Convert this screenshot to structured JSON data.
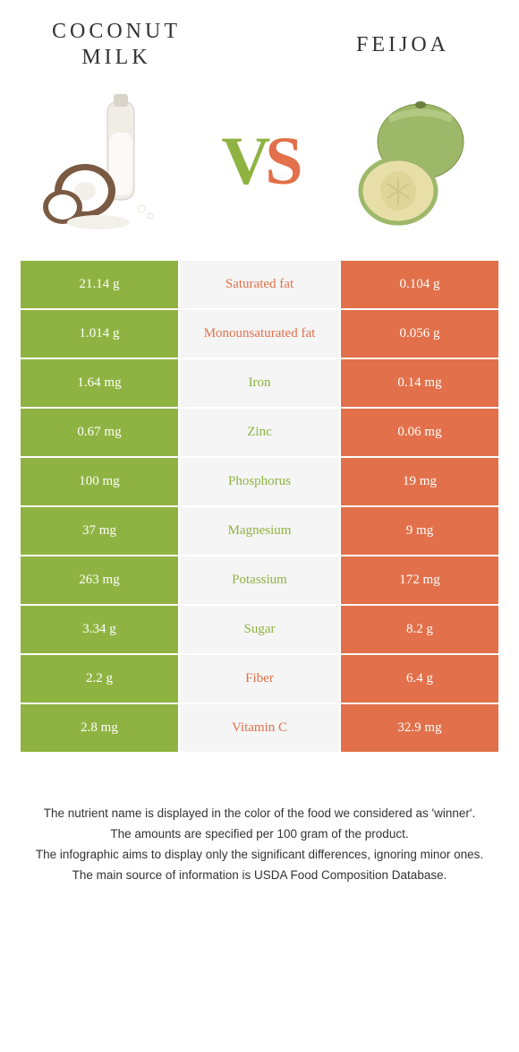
{
  "colors": {
    "green": "#8fb342",
    "orange": "#e2704a",
    "mid_bg": "#f5f5f5",
    "text": "#333333",
    "white": "#ffffff"
  },
  "header": {
    "left_title_line1": "COCONUT",
    "left_title_line2": "MILK",
    "right_title": "FEIJOA",
    "vs_v": "V",
    "vs_s": "S"
  },
  "rows": [
    {
      "label": "Saturated fat",
      "left": "21.14 g",
      "right": "0.104 g",
      "winner": "right"
    },
    {
      "label": "Monounsaturated fat",
      "left": "1.014 g",
      "right": "0.056 g",
      "winner": "right"
    },
    {
      "label": "Iron",
      "left": "1.64 mg",
      "right": "0.14 mg",
      "winner": "left"
    },
    {
      "label": "Zinc",
      "left": "0.67 mg",
      "right": "0.06 mg",
      "winner": "left"
    },
    {
      "label": "Phosphorus",
      "left": "100 mg",
      "right": "19 mg",
      "winner": "left"
    },
    {
      "label": "Magnesium",
      "left": "37 mg",
      "right": "9 mg",
      "winner": "left"
    },
    {
      "label": "Potassium",
      "left": "263 mg",
      "right": "172 mg",
      "winner": "left"
    },
    {
      "label": "Sugar",
      "left": "3.34 g",
      "right": "8.2 g",
      "winner": "left"
    },
    {
      "label": "Fiber",
      "left": "2.2 g",
      "right": "6.4 g",
      "winner": "right"
    },
    {
      "label": "Vitamin C",
      "left": "2.8 mg",
      "right": "32.9 mg",
      "winner": "right"
    }
  ],
  "footer": {
    "line1": "The nutrient name is displayed in the color of the food we considered as 'winner'.",
    "line2": "The amounts are specified per 100 gram of the product.",
    "line3": "The infographic aims to display only the significant differences, ignoring minor ones.",
    "line4": "The main source of information is USDA Food Composition Database."
  }
}
